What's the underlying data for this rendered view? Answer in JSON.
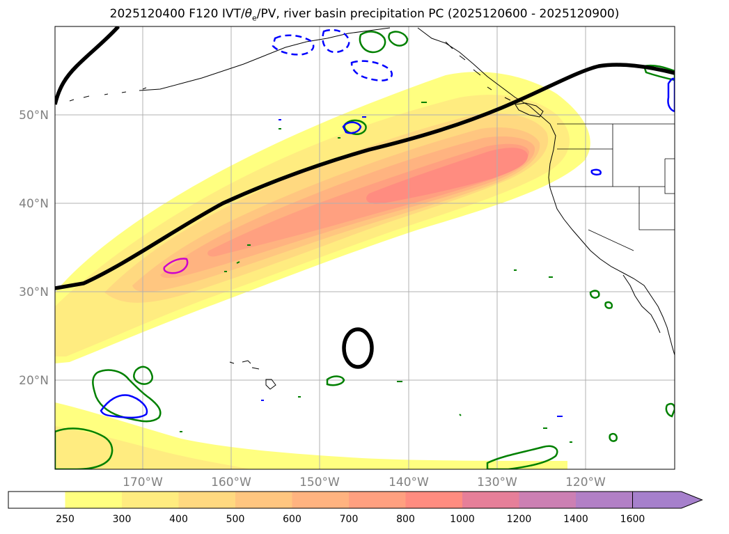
{
  "title_prefix": "2025120400 F120 IVT/",
  "title_theta": "θ",
  "title_sub": "e",
  "title_suffix": "/PV, river basin precipitation PC (2025120600 - 2025120900)",
  "map": {
    "lat_labels": [
      "50°N",
      "40°N",
      "30°N",
      "20°N"
    ],
    "lon_labels": [
      "170°W",
      "160°W",
      "150°W",
      "140°W",
      "130°W",
      "120°W"
    ]
  },
  "colorbar": {
    "levels": [
      "250",
      "300",
      "400",
      "500",
      "600",
      "700",
      "800",
      "1000",
      "1200",
      "1400",
      "1600"
    ],
    "colors": [
      "#ffffff",
      "#ffff80",
      "#ffec80",
      "#ffd980",
      "#ffc680",
      "#ffb380",
      "#ffa080",
      "#ff8c80",
      "#e67f99",
      "#cc80b3",
      "#b280c6",
      "#a680cc"
    ]
  },
  "colors": {
    "pv_positive": "#0000ff",
    "pv_green": "#008000",
    "pv_magenta": "#cc00cc",
    "theta_line": "#000000"
  }
}
